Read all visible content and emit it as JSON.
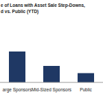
{
  "chart_data": {
    "type": "bar",
    "title": "e of Loans with Asset Sale Step-Downs,\nd vs. Public (YTD)",
    "categories": [
      "arge Sponsors",
      "Mid-Sized Sponsors",
      "Public"
    ],
    "values": [
      30,
      16,
      9
    ],
    "color": "#1f3864",
    "ylim": [
      0,
      30
    ],
    "tick_labels": "x"
  }
}
